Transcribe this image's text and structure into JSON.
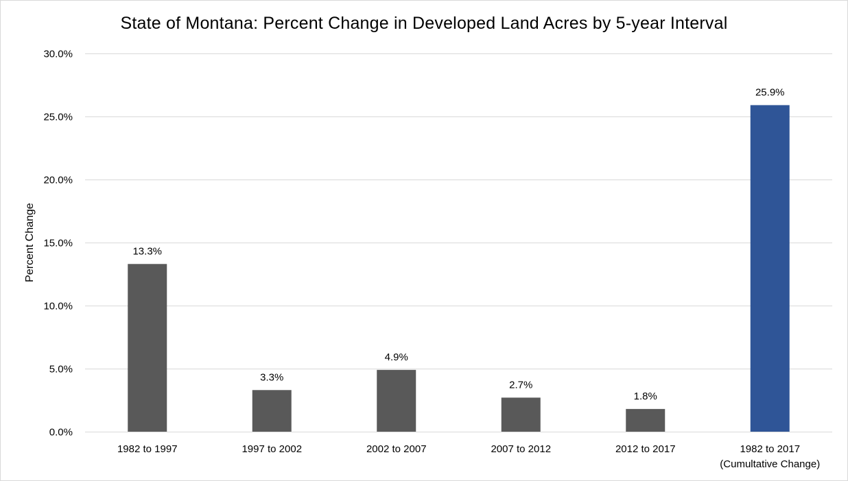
{
  "chart_data": {
    "type": "bar",
    "title": "State of Montana: Percent Change in Developed Land Acres by 5-year Interval",
    "xlabel": "",
    "ylabel": "Percent Change",
    "categories": [
      [
        "1982  to 1997"
      ],
      [
        "1997  to 2002"
      ],
      [
        "2002  to 2007"
      ],
      [
        "2007  to 2012"
      ],
      [
        "2012  to 2017"
      ],
      [
        "1982 to 2017",
        "(Cumultative Change)"
      ]
    ],
    "values": [
      13.3,
      3.3,
      4.9,
      2.7,
      1.8,
      25.9
    ],
    "data_labels": [
      "13.3%",
      "3.3%",
      "4.9%",
      "2.7%",
      "1.8%",
      "25.9%"
    ],
    "ylim": [
      0,
      30
    ],
    "yticks": [
      0,
      5,
      10,
      15,
      20,
      25,
      30
    ],
    "ytick_labels": [
      "0.0%",
      "5.0%",
      "10.0%",
      "15.0%",
      "20.0%",
      "25.0%",
      "30.0%"
    ],
    "grid": true,
    "legend": "none",
    "colors": {
      "interval_bar": "#595959",
      "cumulative_bar": "#2f5597",
      "gridline": "#d9d9d9"
    },
    "bar_color_index": [
      "interval_bar",
      "interval_bar",
      "interval_bar",
      "interval_bar",
      "interval_bar",
      "cumulative_bar"
    ]
  }
}
